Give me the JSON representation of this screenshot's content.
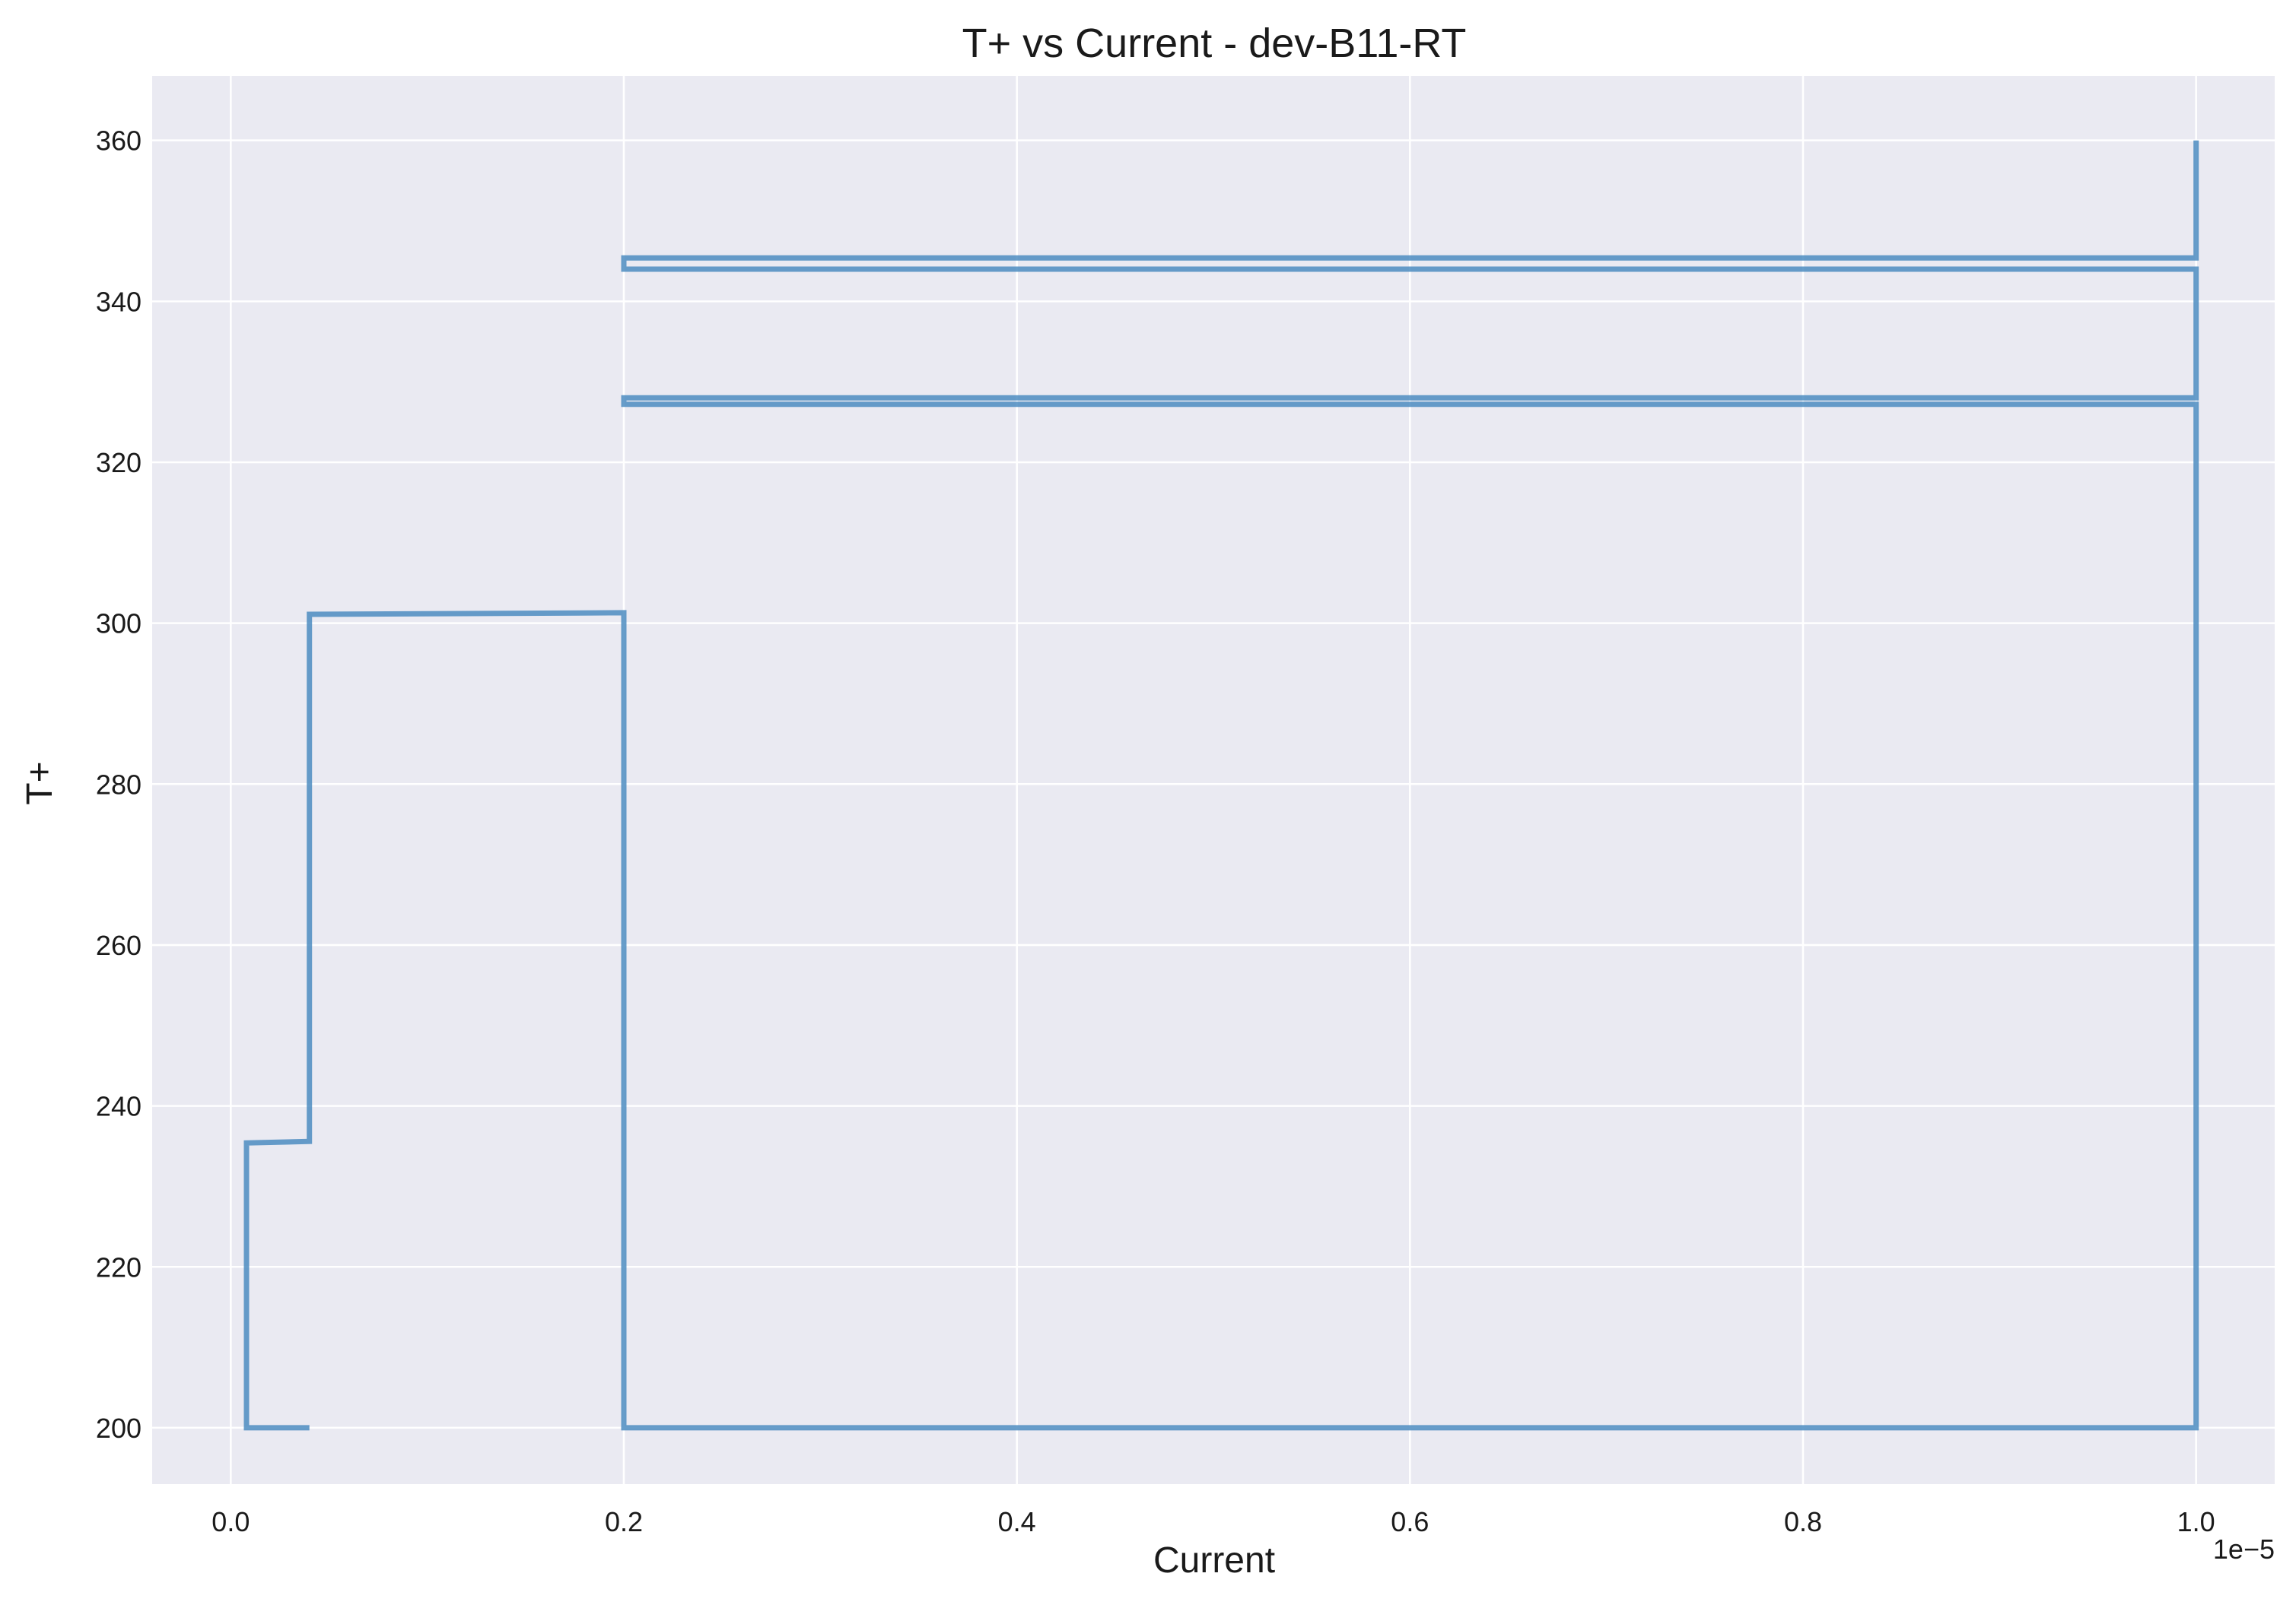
{
  "chart_data": {
    "type": "line",
    "title": "T+ vs Current - dev-B11-RT",
    "xlabel": "Current",
    "ylabel": "T+",
    "x_offset_label": "1e−5",
    "x_scale": 1e-05,
    "xlim": [
      -4e-07,
      1.04e-05
    ],
    "ylim": [
      193,
      368
    ],
    "xticks": [
      0.0,
      0.2,
      0.4,
      0.6,
      0.8,
      1.0
    ],
    "xtick_labels": [
      "0.0",
      "0.2",
      "0.4",
      "0.6",
      "0.8",
      "1.0"
    ],
    "yticks": [
      200,
      220,
      240,
      260,
      280,
      300,
      320,
      340,
      360
    ],
    "ytick_labels": [
      "200",
      "220",
      "240",
      "260",
      "280",
      "300",
      "320",
      "340",
      "360"
    ],
    "grid": true,
    "background_color": "#eaeaf2",
    "grid_color": "#ffffff",
    "series": [
      {
        "color": "#4c8cc1",
        "x": [
          4e-07,
          8e-08,
          8e-08,
          4e-07,
          4e-07,
          2e-06,
          2e-06,
          1e-05,
          1e-05,
          2e-06,
          2e-06,
          1e-05,
          1e-05,
          2e-06,
          2e-06,
          1e-05,
          1e-05
        ],
        "y": [
          200,
          200,
          235.4,
          235.6,
          301.1,
          301.3,
          200,
          200,
          327.2,
          327.2,
          328.0,
          328.0,
          344.0,
          344.0,
          345.4,
          345.4,
          360
        ]
      }
    ]
  }
}
